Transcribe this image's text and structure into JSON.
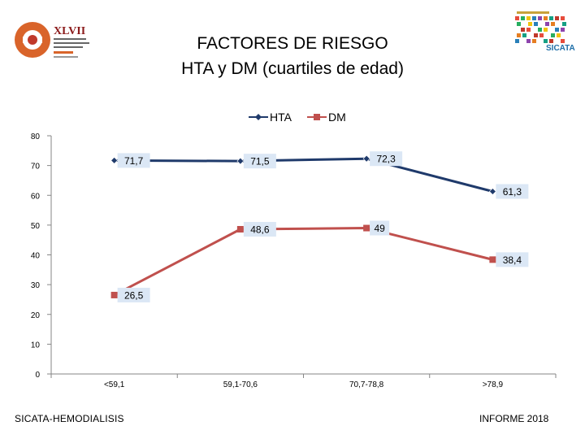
{
  "header": {
    "title_line1": "FACTORES DE RIESGO",
    "title_line2": "HTA y DM (cuartiles de edad)"
  },
  "logos": {
    "left": {
      "text": "XLVII",
      "icon": "congress-logo-icon"
    },
    "right": {
      "text": "SICATA",
      "icon": "sicata-logo-icon"
    }
  },
  "chart_data": {
    "type": "line",
    "categories": [
      "<59,1",
      "59,1-70,6",
      "70,7-78,8",
      ">78,9"
    ],
    "series": [
      {
        "name": "HTA",
        "values": [
          71.7,
          71.5,
          72.3,
          61.3
        ],
        "labels": [
          "71,7",
          "71,5",
          "72,3",
          "61,3"
        ],
        "color": "#1f3a6b",
        "marker": "diamond"
      },
      {
        "name": "DM",
        "values": [
          26.5,
          48.6,
          49,
          38.4
        ],
        "labels": [
          "26,5",
          "48,6",
          "49",
          "38,4"
        ],
        "color": "#c0504d",
        "marker": "square"
      }
    ],
    "ylim": [
      0,
      80
    ],
    "yticks": [
      0,
      10,
      20,
      30,
      40,
      50,
      60,
      70,
      80
    ],
    "grid": false,
    "legend": "top-center",
    "label_bg": "#dbe7f5"
  },
  "footer": {
    "left": "SICATA-HEMODIALISIS",
    "right": "INFORME 2018"
  }
}
